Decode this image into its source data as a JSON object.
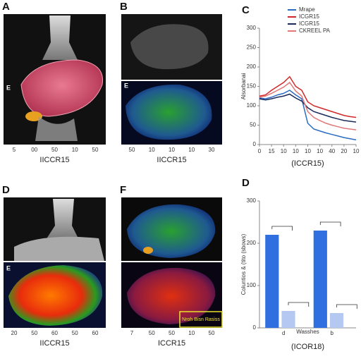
{
  "panels": [
    {
      "letter": "A",
      "inset": "E",
      "xlabel": "IICCR15",
      "ticks": [
        "5",
        "00",
        "50",
        "10",
        "50"
      ]
    },
    {
      "letter": "B",
      "inset": "E",
      "xlabel": "IICCR15",
      "ticks": [
        "50",
        "10",
        "10",
        "10",
        "30"
      ]
    },
    {
      "letter": "D",
      "inset": "E",
      "xlabel": "IICCR15",
      "ticks": [
        "20",
        "50",
        "60",
        "50",
        "60"
      ]
    },
    {
      "letter": "F",
      "annotation": "Nroh Bisn Rasiss",
      "xlabel": "ICCR15",
      "ticks": [
        "7",
        "50",
        "50",
        "10",
        "50"
      ]
    }
  ],
  "chart_data": [
    {
      "type": "line",
      "letter": "C",
      "xlabel": "(ICCR15)",
      "ylabel": "Alsorbanai",
      "x": [
        0,
        1,
        2,
        3,
        4,
        5,
        6,
        7,
        8,
        9,
        10,
        11,
        12,
        13,
        14,
        15,
        16
      ],
      "xlim": [
        0,
        16
      ],
      "xticks": [
        0,
        {
          "value": 2,
          "label": "15"
        },
        {
          "value": 4,
          "label": "10"
        },
        {
          "value": 6,
          "label": "10"
        },
        {
          "value": 8,
          "label": "10"
        },
        {
          "value": 10,
          "label": "10"
        },
        {
          "value": 12,
          "label": "40"
        },
        {
          "value": 14,
          "label": "20"
        },
        {
          "value": 16,
          "label": "10"
        }
      ],
      "ylim": [
        0,
        300
      ],
      "yticks": [
        0,
        50,
        100,
        150,
        200,
        250,
        300
      ],
      "series": [
        {
          "name": "Mrape",
          "color": "#2a6cc0",
          "values": [
            120,
            118,
            122,
            128,
            132,
            140,
            128,
            118,
            55,
            40,
            35,
            30,
            26,
            22,
            18,
            15,
            12
          ]
        },
        {
          "name": "ICGR15",
          "color": "#d02828",
          "values": [
            125,
            128,
            140,
            150,
            160,
            175,
            150,
            140,
            110,
            100,
            95,
            90,
            85,
            80,
            75,
            72,
            70
          ]
        },
        {
          "name": "ICGR15",
          "color": "#1a2a5a",
          "values": [
            118,
            115,
            118,
            122,
            125,
            130,
            120,
            112,
            95,
            85,
            80,
            75,
            70,
            66,
            62,
            60,
            58
          ]
        },
        {
          "name": "CKREEL PA",
          "color": "#e07878",
          "values": [
            122,
            125,
            132,
            140,
            148,
            160,
            138,
            125,
            85,
            70,
            62,
            55,
            50,
            46,
            42,
            40,
            38
          ]
        }
      ]
    },
    {
      "type": "bar",
      "letter": "D",
      "xlabel": "(ICOR18)",
      "xtitle": "Wasshes",
      "ylabel": "Coluntios & (tito (sbows)",
      "categories": [
        "d",
        "b"
      ],
      "ylim": [
        0,
        300
      ],
      "yticks": [
        0,
        100,
        200,
        300
      ],
      "series": [
        {
          "color": "#2f6fe0",
          "values": [
            220,
            230
          ]
        },
        {
          "color": "#b4c8f2",
          "values": [
            40,
            35
          ]
        }
      ]
    }
  ]
}
